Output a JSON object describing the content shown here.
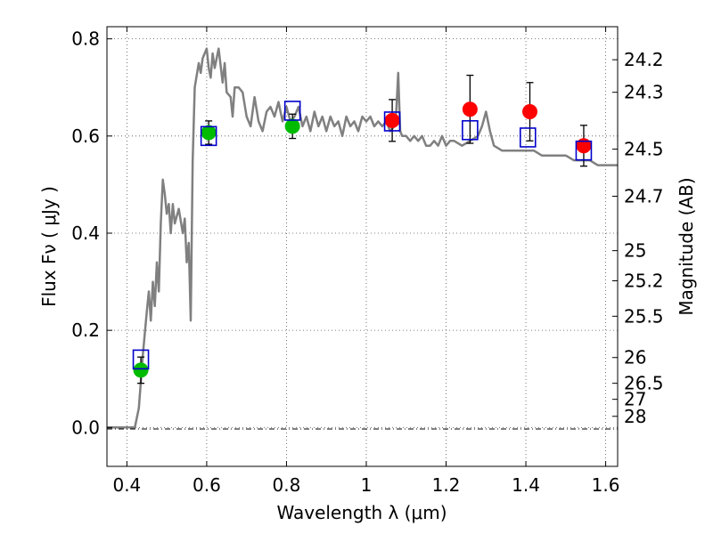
{
  "chart_data": {
    "type": "scatter",
    "xlabel": "Wavelength  λ (μm)",
    "ylabel": "Flux  Fν  ( μJy )",
    "y2label": "Magnitude (AB)",
    "xlim": [
      0.35,
      1.63
    ],
    "ylim": [
      -0.08,
      0.825
    ],
    "x_ticks": [
      {
        "value": 0.4,
        "label": "0.4"
      },
      {
        "value": 0.6,
        "label": "0.6"
      },
      {
        "value": 0.8,
        "label": "0.8"
      },
      {
        "value": 1.0,
        "label": "1"
      },
      {
        "value": 1.2,
        "label": "1.2"
      },
      {
        "value": 1.4,
        "label": "1.4"
      },
      {
        "value": 1.6,
        "label": "1.6"
      }
    ],
    "y_ticks": [
      {
        "value": 0.0,
        "label": "0.0"
      },
      {
        "value": 0.2,
        "label": "0.2"
      },
      {
        "value": 0.4,
        "label": "0.4"
      },
      {
        "value": 0.6,
        "label": "0.6"
      },
      {
        "value": 0.8,
        "label": "0.8"
      }
    ],
    "magnitude_ticks": [
      {
        "flux": 0.757,
        "label": "24.2"
      },
      {
        "flux": 0.69,
        "label": "24.3"
      },
      {
        "flux": 0.573,
        "label": "24.5"
      },
      {
        "flux": 0.476,
        "label": "24.7"
      },
      {
        "flux": 0.364,
        "label": "25"
      },
      {
        "flux": 0.302,
        "label": "25.2"
      },
      {
        "flux": 0.229,
        "label": "25.5"
      },
      {
        "flux": 0.144,
        "label": "26"
      },
      {
        "flux": 0.091,
        "label": "26.5"
      },
      {
        "flux": 0.058,
        "label": "27"
      },
      {
        "flux": 0.023,
        "label": "28"
      }
    ],
    "grid": true,
    "colors": {
      "model": "#808080",
      "green_points": "#00bb00",
      "red_points": "#ff0000",
      "model_squares": "#0000cc",
      "errorbars": "#000000",
      "grid": "#555555"
    },
    "model_spectrum": [
      [
        0.35,
        0.0
      ],
      [
        0.42,
        0.0
      ],
      [
        0.43,
        0.04
      ],
      [
        0.44,
        0.15
      ],
      [
        0.45,
        0.24
      ],
      [
        0.455,
        0.28
      ],
      [
        0.46,
        0.22
      ],
      [
        0.465,
        0.3
      ],
      [
        0.47,
        0.25
      ],
      [
        0.475,
        0.34
      ],
      [
        0.48,
        0.28
      ],
      [
        0.485,
        0.42
      ],
      [
        0.49,
        0.51
      ],
      [
        0.495,
        0.48
      ],
      [
        0.5,
        0.44
      ],
      [
        0.505,
        0.46
      ],
      [
        0.51,
        0.4
      ],
      [
        0.515,
        0.46
      ],
      [
        0.52,
        0.42
      ],
      [
        0.53,
        0.45
      ],
      [
        0.54,
        0.4
      ],
      [
        0.545,
        0.43
      ],
      [
        0.55,
        0.34
      ],
      [
        0.555,
        0.38
      ],
      [
        0.56,
        0.22
      ],
      [
        0.565,
        0.55
      ],
      [
        0.57,
        0.7
      ],
      [
        0.58,
        0.75
      ],
      [
        0.585,
        0.73
      ],
      [
        0.59,
        0.76
      ],
      [
        0.6,
        0.78
      ],
      [
        0.605,
        0.74
      ],
      [
        0.61,
        0.72
      ],
      [
        0.615,
        0.77
      ],
      [
        0.62,
        0.74
      ],
      [
        0.63,
        0.78
      ],
      [
        0.64,
        0.71
      ],
      [
        0.645,
        0.75
      ],
      [
        0.65,
        0.69
      ],
      [
        0.66,
        0.68
      ],
      [
        0.665,
        0.64
      ],
      [
        0.67,
        0.7
      ],
      [
        0.68,
        0.7
      ],
      [
        0.69,
        0.69
      ],
      [
        0.7,
        0.64
      ],
      [
        0.71,
        0.62
      ],
      [
        0.72,
        0.68
      ],
      [
        0.73,
        0.63
      ],
      [
        0.74,
        0.61
      ],
      [
        0.75,
        0.65
      ],
      [
        0.76,
        0.66
      ],
      [
        0.77,
        0.64
      ],
      [
        0.78,
        0.67
      ],
      [
        0.79,
        0.63
      ],
      [
        0.8,
        0.66
      ],
      [
        0.81,
        0.63
      ],
      [
        0.82,
        0.64
      ],
      [
        0.83,
        0.66
      ],
      [
        0.84,
        0.62
      ],
      [
        0.85,
        0.64
      ],
      [
        0.86,
        0.61
      ],
      [
        0.87,
        0.65
      ],
      [
        0.88,
        0.62
      ],
      [
        0.89,
        0.64
      ],
      [
        0.9,
        0.61
      ],
      [
        0.91,
        0.64
      ],
      [
        0.92,
        0.62
      ],
      [
        0.93,
        0.63
      ],
      [
        0.94,
        0.6
      ],
      [
        0.95,
        0.64
      ],
      [
        0.96,
        0.62
      ],
      [
        0.97,
        0.63
      ],
      [
        0.98,
        0.61
      ],
      [
        0.99,
        0.64
      ],
      [
        1.0,
        0.63
      ],
      [
        1.01,
        0.64
      ],
      [
        1.02,
        0.62
      ],
      [
        1.03,
        0.63
      ],
      [
        1.04,
        0.62
      ],
      [
        1.05,
        0.63
      ],
      [
        1.06,
        0.61
      ],
      [
        1.07,
        0.62
      ],
      [
        1.075,
        0.65
      ],
      [
        1.08,
        0.73
      ],
      [
        1.085,
        0.61
      ],
      [
        1.09,
        0.6
      ],
      [
        1.1,
        0.6
      ],
      [
        1.11,
        0.59
      ],
      [
        1.12,
        0.6
      ],
      [
        1.13,
        0.59
      ],
      [
        1.14,
        0.6
      ],
      [
        1.15,
        0.58
      ],
      [
        1.16,
        0.58
      ],
      [
        1.17,
        0.59
      ],
      [
        1.18,
        0.58
      ],
      [
        1.19,
        0.6
      ],
      [
        1.2,
        0.58
      ],
      [
        1.21,
        0.59
      ],
      [
        1.22,
        0.59
      ],
      [
        1.24,
        0.58
      ],
      [
        1.26,
        0.59
      ],
      [
        1.28,
        0.6
      ],
      [
        1.29,
        0.62
      ],
      [
        1.3,
        0.65
      ],
      [
        1.31,
        0.61
      ],
      [
        1.32,
        0.58
      ],
      [
        1.34,
        0.57
      ],
      [
        1.36,
        0.57
      ],
      [
        1.38,
        0.57
      ],
      [
        1.4,
        0.57
      ],
      [
        1.42,
        0.57
      ],
      [
        1.44,
        0.56
      ],
      [
        1.46,
        0.56
      ],
      [
        1.48,
        0.56
      ],
      [
        1.5,
        0.56
      ],
      [
        1.52,
        0.55
      ],
      [
        1.54,
        0.55
      ],
      [
        1.56,
        0.55
      ],
      [
        1.58,
        0.54
      ],
      [
        1.6,
        0.54
      ],
      [
        1.63,
        0.54
      ]
    ],
    "observed_green": [
      {
        "x": 0.435,
        "y": 0.118,
        "err": 0.027
      },
      {
        "x": 0.605,
        "y": 0.607,
        "err": 0.024
      },
      {
        "x": 0.815,
        "y": 0.62,
        "err": 0.025
      }
    ],
    "observed_red": [
      {
        "x": 1.065,
        "y": 0.632,
        "err": 0.043
      },
      {
        "x": 1.26,
        "y": 0.655,
        "err": 0.07
      },
      {
        "x": 1.41,
        "y": 0.65,
        "err": 0.06
      },
      {
        "x": 1.545,
        "y": 0.58,
        "err": 0.042
      }
    ],
    "model_points": [
      {
        "x": 0.435,
        "y": 0.14
      },
      {
        "x": 0.605,
        "y": 0.6
      },
      {
        "x": 0.815,
        "y": 0.652
      },
      {
        "x": 1.065,
        "y": 0.63
      },
      {
        "x": 1.26,
        "y": 0.612
      },
      {
        "x": 1.405,
        "y": 0.597
      },
      {
        "x": 1.545,
        "y": 0.57
      }
    ]
  }
}
